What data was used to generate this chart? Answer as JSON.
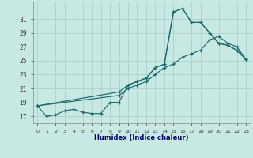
{
  "xlabel": "Humidex (Indice chaleur)",
  "background_color": "#c8e8e4",
  "grid_color": "#a8ccc8",
  "line_color": "#1a6b6b",
  "xlim": [
    -0.5,
    23.5
  ],
  "ylim": [
    16.0,
    33.5
  ],
  "yticks": [
    17,
    19,
    21,
    23,
    25,
    27,
    29,
    31
  ],
  "xticks": [
    0,
    1,
    2,
    3,
    4,
    5,
    6,
    7,
    8,
    9,
    10,
    11,
    12,
    13,
    14,
    15,
    16,
    17,
    18,
    19,
    20,
    21,
    22,
    23
  ],
  "line1_x": [
    0,
    1,
    2,
    3,
    4,
    5,
    6,
    7,
    8,
    9,
    10,
    11,
    12,
    13,
    14,
    15,
    16,
    17,
    18,
    19,
    20,
    21,
    22,
    23
  ],
  "line1_y": [
    18.5,
    17.0,
    17.2,
    17.8,
    18.0,
    17.6,
    17.4,
    17.4,
    19.0,
    19.0,
    21.5,
    22.0,
    22.5,
    24.0,
    24.5,
    32.0,
    32.5,
    30.5,
    30.5,
    29.0,
    27.5,
    27.2,
    26.5,
    25.2
  ],
  "line2_x": [
    0,
    9,
    10,
    11,
    12,
    13,
    14,
    15,
    16,
    17,
    18,
    19,
    20,
    21,
    22,
    23
  ],
  "line2_y": [
    18.5,
    20.5,
    21.5,
    22.0,
    22.5,
    24.0,
    24.5,
    32.0,
    32.5,
    30.5,
    30.5,
    29.0,
    27.5,
    27.2,
    26.5,
    25.2
  ],
  "line3_x": [
    0,
    9,
    10,
    11,
    12,
    13,
    14,
    15,
    16,
    17,
    18,
    19,
    20,
    21,
    22,
    23
  ],
  "line3_y": [
    18.5,
    20.0,
    21.0,
    21.5,
    22.0,
    23.0,
    24.0,
    24.5,
    25.5,
    26.0,
    26.5,
    28.0,
    28.5,
    27.5,
    27.0,
    25.2
  ]
}
